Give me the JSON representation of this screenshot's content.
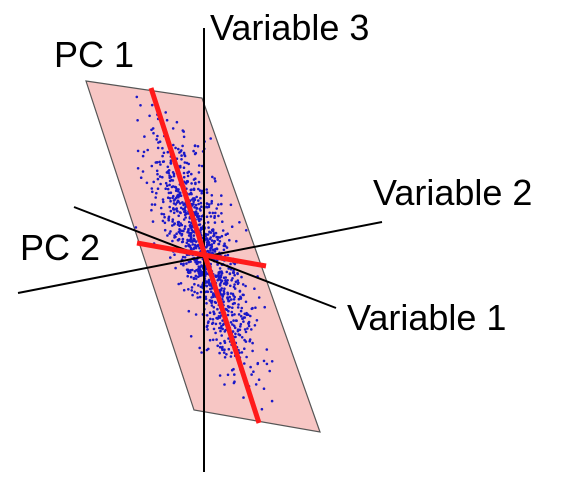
{
  "labels": {
    "variable_3": "Variable 3",
    "variable_2": "Variable 2",
    "variable_1": "Variable 1",
    "pc_1": "PC 1",
    "pc_2": "PC 2"
  },
  "colors": {
    "plane_fill": "#f7c6c4",
    "plane_stroke": "#555555",
    "axis": "#000000",
    "pc_line": "#ff1a1a",
    "points": "#1a18c8",
    "text": "#000000"
  }
}
